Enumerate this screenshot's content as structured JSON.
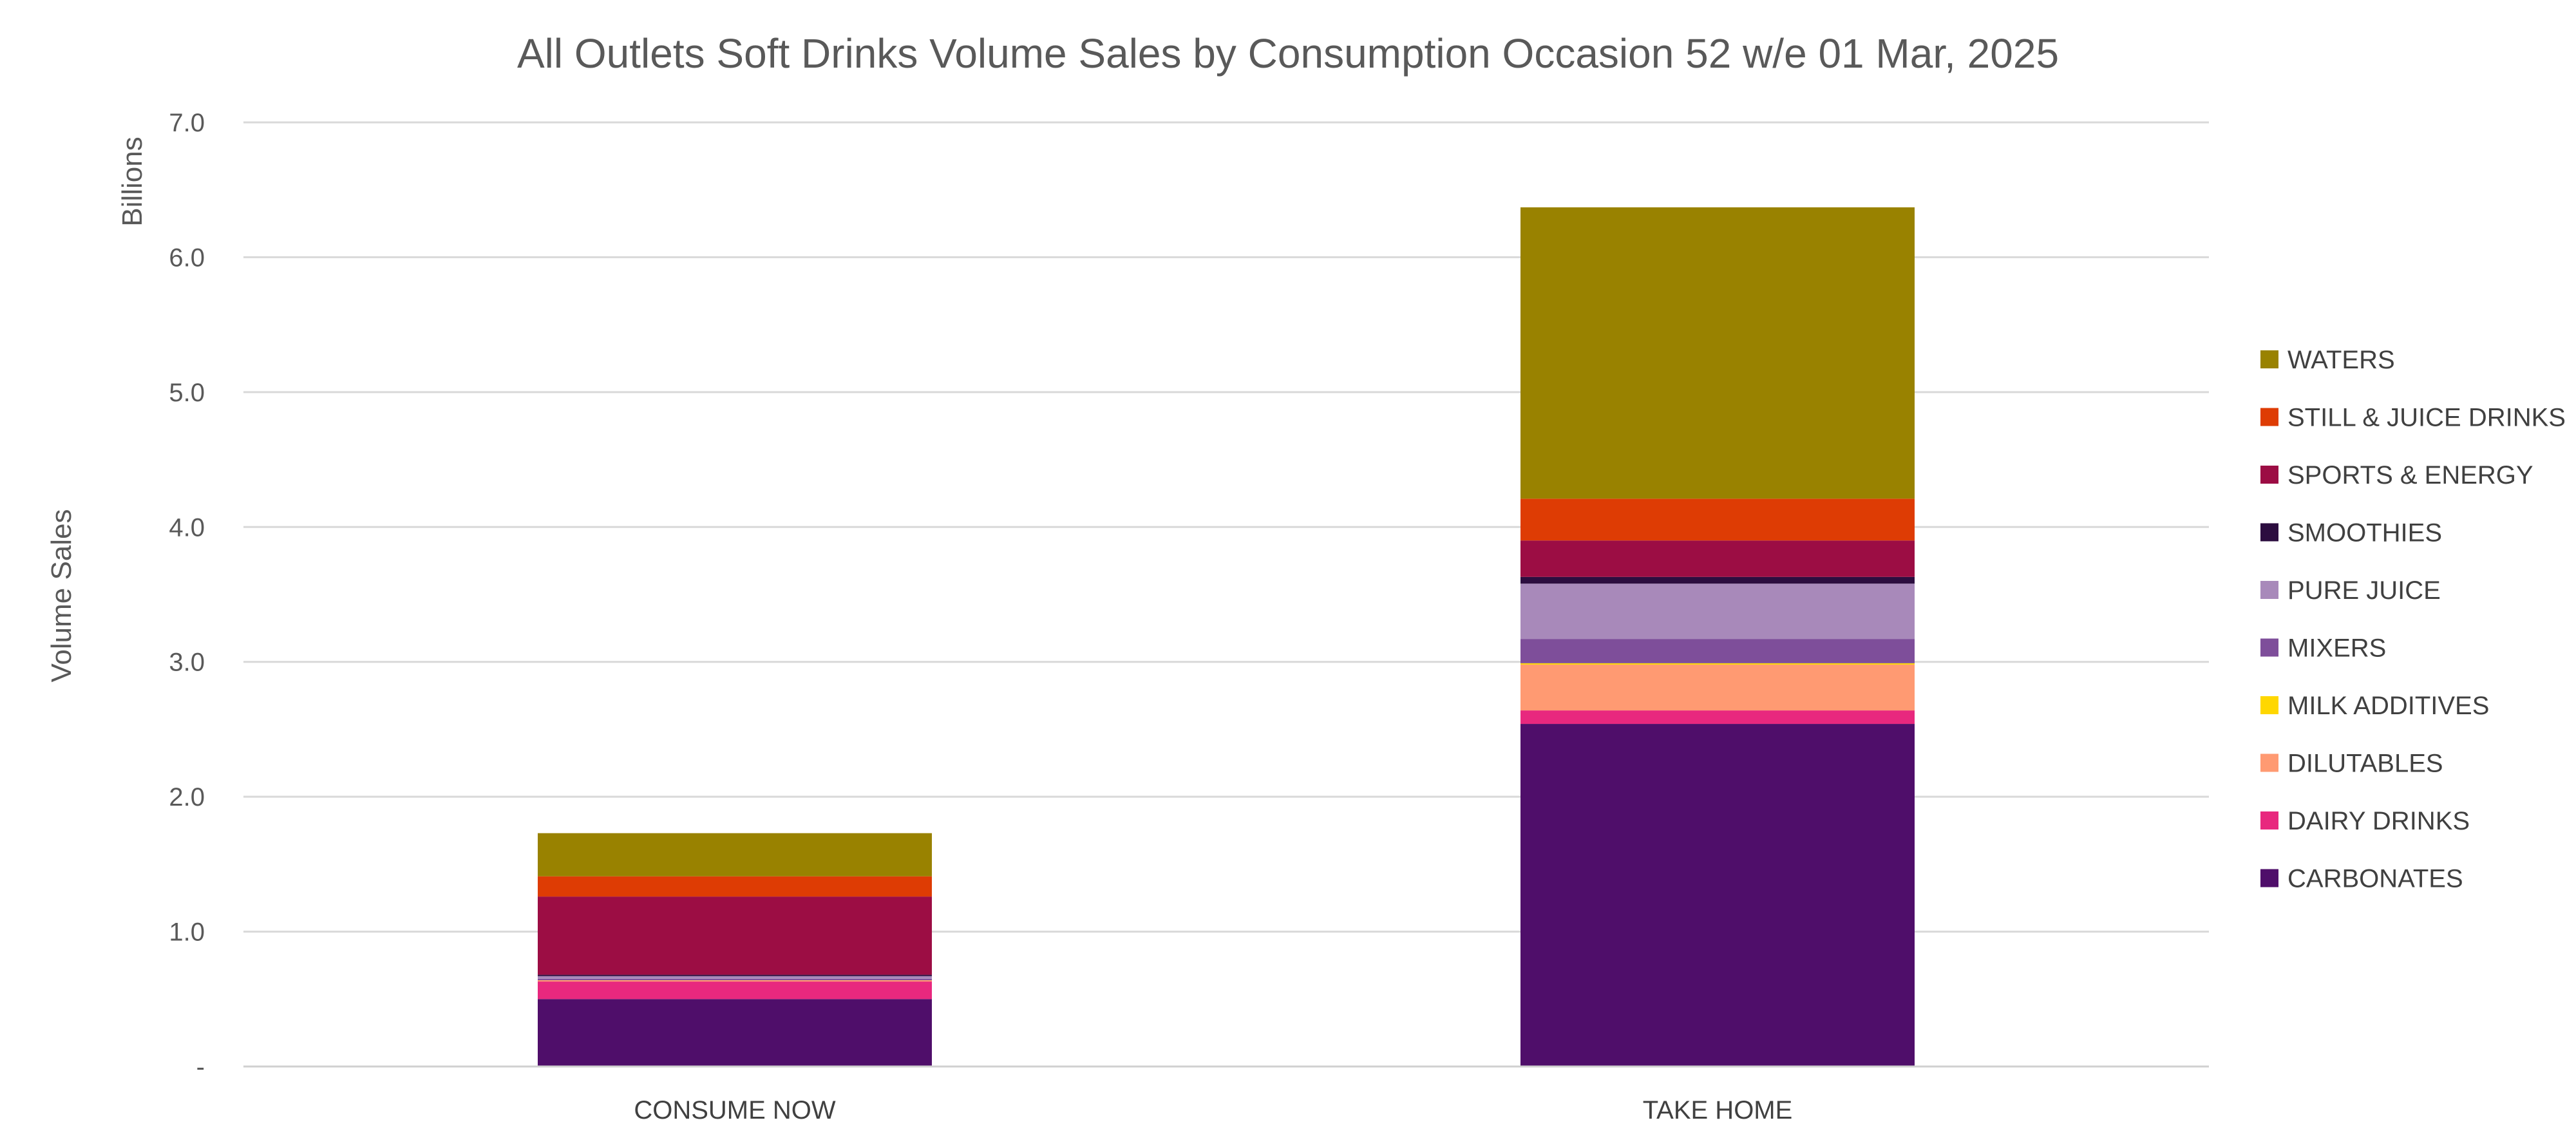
{
  "chart_data": {
    "type": "bar",
    "stacked": true,
    "title": "All Outlets Soft Drinks  Volume Sales by Consumption Occasion 52 w/e 01 Mar, 2025",
    "ylabel": "Volume Sales",
    "yunit": "Billions",
    "ylim": [
      0,
      7
    ],
    "yticks": [
      0,
      1,
      2,
      3,
      4,
      5,
      6,
      7
    ],
    "ytick_labels": [
      "-",
      "1.0",
      "2.0",
      "3.0",
      "4.0",
      "5.0",
      "6.0",
      "7.0"
    ],
    "grid": true,
    "legend_position": "right",
    "categories": [
      "CONSUME NOW",
      "TAKE HOME"
    ],
    "series": [
      {
        "name": "CARBONATES",
        "color": "#4F0E6A",
        "values": [
          0.5,
          2.54
        ]
      },
      {
        "name": "DAIRY DRINKS",
        "color": "#E8287E",
        "values": [
          0.13,
          0.1
        ]
      },
      {
        "name": "DILUTABLES",
        "color": "#FF9A72",
        "values": [
          0.01,
          0.34
        ]
      },
      {
        "name": "MILK ADDITIVES",
        "color": "#FFD700",
        "values": [
          0.0,
          0.01
        ]
      },
      {
        "name": "MIXERS",
        "color": "#7E4E9A",
        "values": [
          0.01,
          0.18
        ]
      },
      {
        "name": "PURE JUICE",
        "color": "#A889BA",
        "values": [
          0.02,
          0.41
        ]
      },
      {
        "name": "SMOOTHIES",
        "color": "#2C0D3F",
        "values": [
          0.01,
          0.05
        ]
      },
      {
        "name": "SPORTS & ENERGY",
        "color": "#9C0D44",
        "values": [
          0.58,
          0.27
        ]
      },
      {
        "name": "STILL & JUICE DRINKS",
        "color": "#DE3C04",
        "values": [
          0.15,
          0.31
        ]
      },
      {
        "name": "WATERS",
        "color": "#998200",
        "values": [
          0.32,
          2.16
        ]
      }
    ]
  }
}
